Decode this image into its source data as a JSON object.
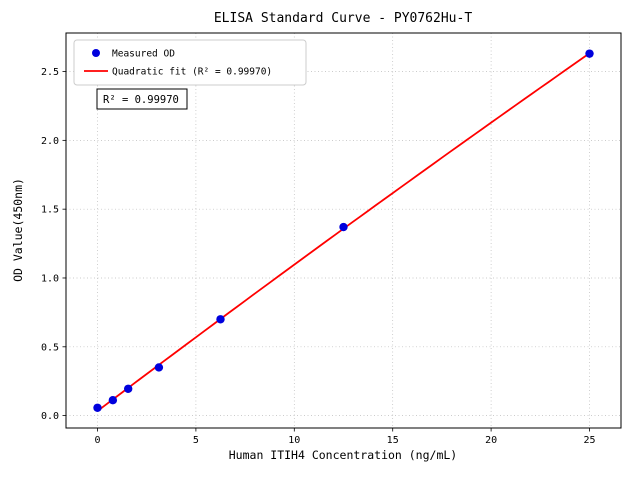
{
  "chart_data": {
    "type": "scatter",
    "title": "ELISA Standard Curve - PY0762Hu-T",
    "xlabel": "Human ITIH4 Concentration (ng/mL)",
    "ylabel": "OD Value(450nm)",
    "xlim": [
      -1.6,
      26.6
    ],
    "ylim": [
      -0.09,
      2.78
    ],
    "xticks": [
      0,
      5,
      10,
      15,
      20,
      25
    ],
    "xtick_labels": [
      "0",
      "5",
      "10",
      "15",
      "20",
      "25"
    ],
    "yticks": [
      0.0,
      0.5,
      1.0,
      1.5,
      2.0,
      2.5
    ],
    "ytick_labels": [
      "0.0",
      "0.5",
      "1.0",
      "1.5",
      "2.0",
      "2.5"
    ],
    "grid": true,
    "legend_position": "upper left",
    "series": [
      {
        "name": "Measured OD",
        "type": "scatter",
        "color": "#0000dd",
        "x": [
          0,
          0.78,
          1.56,
          3.12,
          6.25,
          12.5,
          25
        ],
        "y": [
          0.057,
          0.112,
          0.195,
          0.35,
          0.7,
          1.37,
          2.63
        ]
      },
      {
        "name": "Quadratic fit (R² = 0.99970)",
        "type": "quadratic-fit-line",
        "color": "#ff0000",
        "x_range": [
          0,
          25
        ]
      }
    ],
    "annotation": "R² = 0.99970",
    "r_squared": "0.99970",
    "colors": {
      "points": "#0000dd",
      "fit_line": "#ff0000",
      "grid": "#bbbbbb",
      "background": "#ffffff"
    }
  }
}
